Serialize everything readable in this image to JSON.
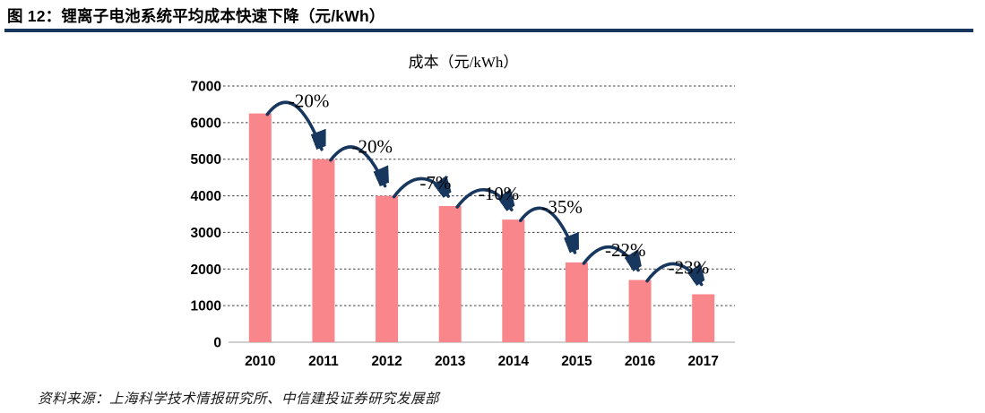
{
  "figure": {
    "label": "图 12：锂离子电池系统平均成本快速下降（元/kWh）",
    "rule_color": "#17375E"
  },
  "chart_data": {
    "type": "bar",
    "title": "成本（元/kWh）",
    "categories": [
      "2010",
      "2011",
      "2012",
      "2013",
      "2014",
      "2015",
      "2016",
      "2017"
    ],
    "values": [
      6250,
      5000,
      4000,
      3720,
      3350,
      2180,
      1700,
      1310
    ],
    "change_labels": [
      "-20%",
      "-20%",
      "-7%",
      "-10%",
      "-35%",
      "-22%",
      "-23%"
    ],
    "xlabel": "",
    "ylabel": "",
    "ylim": [
      0,
      7000
    ],
    "ytick_step": 1000,
    "grid": "horizontal-dashed",
    "legend": "none",
    "bar_color": "#F9868B",
    "arrow_color": "#17375E",
    "gridline_color": "#404040",
    "axis_line_color": "#BFBFBF",
    "tick_label_color": "#000000"
  },
  "footer": {
    "source": "资料来源：上海科学技术情报研究所、中信建投证券研究发展部"
  }
}
